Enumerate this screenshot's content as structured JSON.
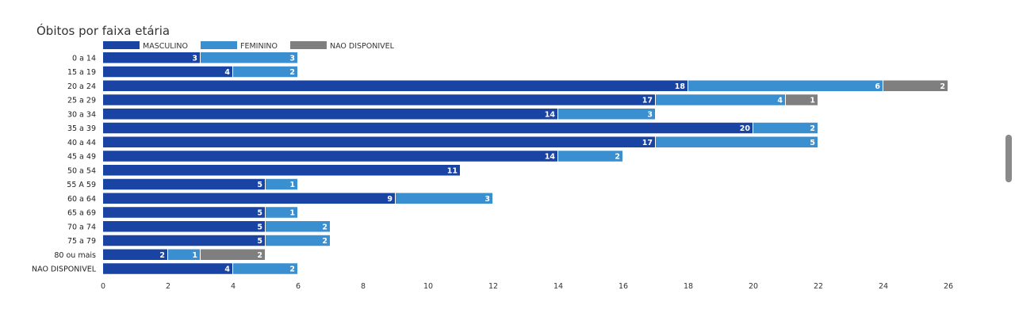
{
  "chart_data": {
    "type": "bar",
    "orientation": "horizontal",
    "stacked": true,
    "title": "Óbitos por faixa etária",
    "xlabel": "",
    "ylabel": "",
    "xlim": [
      0,
      26
    ],
    "xticks": [
      0,
      2,
      4,
      6,
      8,
      10,
      12,
      14,
      16,
      18,
      20,
      22,
      24,
      26
    ],
    "legend_position": "top-left",
    "grid": false,
    "categories": [
      "0 a 14",
      "15 a 19",
      "20 a 24",
      "25 a 29",
      "30 a 34",
      "35 a 39",
      "40 a 44",
      "45 a 49",
      "50 a 54",
      "55 A 59",
      "60 a 64",
      "65 a 69",
      "70 a 74",
      "75 a 79",
      "80 ou mais",
      "NAO DISPONIVEL"
    ],
    "series": [
      {
        "name": "MASCULINO",
        "color": "#1a44a3",
        "values": [
          3,
          4,
          18,
          17,
          14,
          20,
          17,
          14,
          11,
          5,
          9,
          5,
          5,
          5,
          2,
          4
        ]
      },
      {
        "name": "FEMININO",
        "color": "#3a8fd1",
        "values": [
          3,
          2,
          6,
          4,
          3,
          2,
          5,
          2,
          0,
          1,
          3,
          1,
          2,
          2,
          1,
          2
        ]
      },
      {
        "name": "NAO DISPONIVEL",
        "color": "#7f7f7f",
        "values": [
          0,
          0,
          2,
          1,
          0,
          0,
          0,
          0,
          0,
          0,
          0,
          0,
          0,
          0,
          2,
          0
        ]
      }
    ]
  }
}
